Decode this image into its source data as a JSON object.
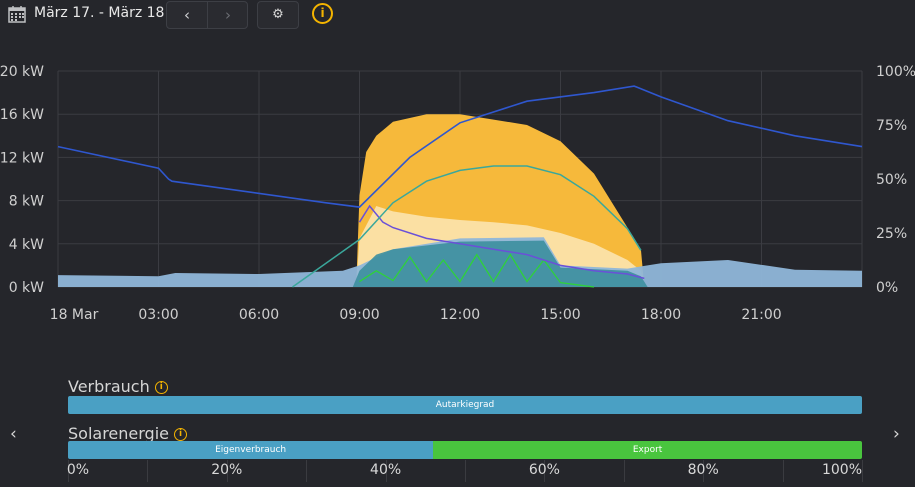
{
  "header": {
    "date_range": "März 17. - März 18.",
    "prev_icon": "‹",
    "next_icon": "›",
    "settings_icon": "⚙",
    "info_icon": "i"
  },
  "chart_data": {
    "type": "area",
    "y_left_ticks": [
      "0 kW",
      "4 kW",
      "8 kW",
      "12 kW",
      "16 kW",
      "20 kW"
    ],
    "y_right_ticks": [
      "0%",
      "25%",
      "50%",
      "75%",
      "100%"
    ],
    "x_ticks": [
      "18 Mar",
      "03:00",
      "06:00",
      "09:00",
      "12:00",
      "15:00",
      "18:00",
      "21:00"
    ],
    "ylim_kw": [
      0,
      20
    ],
    "ylim_pct": [
      0,
      100
    ],
    "x_range_hours": [
      0,
      24
    ],
    "grid": true,
    "colors": {
      "solar_peak": "#f6b93b",
      "solar_base": "#fbe0a3",
      "consumption": "#8fb6d9",
      "self_consumption": "#3c8f9f",
      "battery_soc": "#2f57cf",
      "purple": "#6a50d8",
      "teal_curve": "#3aa79b",
      "green": "#2fd13a"
    },
    "series": [
      {
        "key": "battery_soc_pct",
        "x": [
          0,
          3.0,
          3.3,
          3.4,
          8.0,
          9.0,
          10.5,
          12.0,
          14.0,
          16.0,
          17.2,
          18.0,
          20.0,
          22.0,
          24.0
        ],
        "values": [
          65,
          55,
          50,
          49,
          39,
          37,
          60,
          76,
          86,
          90,
          93,
          88,
          77,
          70,
          65
        ]
      },
      {
        "key": "solar_peak_kw",
        "x": [
          8.9,
          9.0,
          9.2,
          9.5,
          10.0,
          11.0,
          12.0,
          13.0,
          14.0,
          15.0,
          16.0,
          17.0,
          17.4,
          17.5
        ],
        "values": [
          0,
          8.5,
          12.5,
          14.0,
          15.3,
          16.0,
          16.0,
          15.5,
          15.0,
          13.5,
          10.5,
          5.5,
          3.5,
          0
        ]
      },
      {
        "key": "solar_base_kw",
        "x": [
          8.9,
          9.0,
          9.5,
          10.0,
          11.0,
          12.0,
          13.0,
          14.0,
          15.0,
          16.0,
          17.0,
          17.4,
          17.5
        ],
        "values": [
          0,
          4.5,
          7.5,
          7.0,
          6.5,
          6.2,
          6.0,
          5.7,
          5.0,
          4.0,
          2.5,
          1.5,
          0
        ]
      },
      {
        "key": "consumption_kw",
        "x": [
          0,
          3.0,
          3.5,
          6.0,
          8.5,
          9.0,
          10.0,
          12.0,
          14.5,
          15.0,
          17.0,
          18.0,
          20.0,
          22.0,
          24.0
        ],
        "values": [
          1.1,
          1.0,
          1.3,
          1.2,
          1.5,
          2.0,
          3.5,
          4.5,
          4.6,
          2.0,
          1.7,
          2.2,
          2.5,
          1.6,
          1.5
        ]
      },
      {
        "key": "self_consumption_kw",
        "x": [
          8.8,
          9.0,
          9.5,
          10.0,
          12.0,
          14.5,
          15.0,
          17.0,
          17.4,
          17.6
        ],
        "values": [
          0,
          1.5,
          3.0,
          3.5,
          4.2,
          4.3,
          1.8,
          1.5,
          1.0,
          0
        ]
      },
      {
        "key": "purple_kw",
        "x": [
          9.0,
          9.3,
          9.7,
          10.0,
          11.0,
          12.0,
          13.0,
          14.0,
          15.0,
          16.0,
          17.0,
          17.5
        ],
        "values": [
          6.0,
          7.5,
          6.0,
          5.5,
          4.5,
          4.0,
          3.5,
          3.0,
          2.0,
          1.5,
          1.2,
          0.8
        ]
      },
      {
        "key": "teal_curve_pct",
        "x": [
          7.0,
          9.0,
          10.0,
          11.0,
          12.0,
          13.0,
          14.0,
          15.0,
          16.0,
          17.0,
          17.4
        ],
        "values": [
          0,
          22,
          39,
          49,
          54,
          56,
          56,
          52,
          42,
          27,
          17
        ]
      },
      {
        "key": "green_kw",
        "x": [
          9.0,
          9.5,
          10.0,
          10.5,
          11.0,
          11.5,
          12.0,
          12.5,
          13.0,
          13.5,
          14.0,
          14.5,
          15.0,
          15.5,
          16.0
        ],
        "values": [
          0.5,
          1.5,
          0.6,
          2.8,
          0.5,
          2.5,
          0.5,
          3.0,
          0.5,
          3.0,
          0.5,
          2.5,
          0.4,
          0.2,
          0
        ]
      }
    ]
  },
  "bars": {
    "verbrauch_title": "Verbrauch",
    "solar_title": "Solarenergie",
    "info_icon": "i",
    "autarkie_label": "Autarkiegrad",
    "autarkie_fraction": 1.0,
    "eigen_label": "Eigenverbrauch",
    "eigen_fraction": 0.46,
    "export_label": "Export",
    "export_fraction": 0.54,
    "scale_labels": [
      "0%",
      "20%",
      "40%",
      "60%",
      "80%",
      "100%"
    ]
  },
  "nav_left": "‹",
  "nav_right": "›"
}
